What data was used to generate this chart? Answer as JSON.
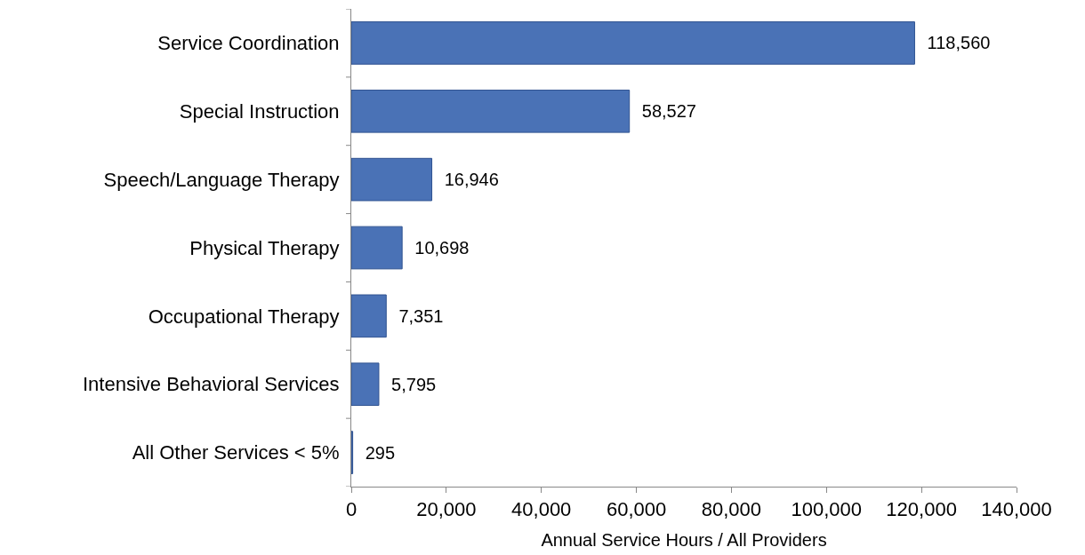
{
  "chart_data": {
    "type": "bar",
    "orientation": "horizontal",
    "categories": [
      "Service Coordination",
      "Special Instruction",
      "Speech/Language Therapy",
      "Physical Therapy",
      "Occupational Therapy",
      "Intensive Behavioral Services",
      "All Other Services < 5%"
    ],
    "values": [
      118560,
      58527,
      16946,
      10698,
      7351,
      5795,
      295
    ],
    "color": "#4a72b6",
    "xlabel": "Annual Service Hours / All Providers",
    "xlim": [
      0,
      140000
    ],
    "xticks": [
      {
        "value": 0,
        "label": "0"
      },
      {
        "value": 20000,
        "label": "20,000"
      },
      {
        "value": 40000,
        "label": "40,000"
      },
      {
        "value": 60000,
        "label": "60,000"
      },
      {
        "value": 80000,
        "label": "80,000"
      },
      {
        "value": 100000,
        "label": "100,000"
      },
      {
        "value": 120000,
        "label": "120,000"
      },
      {
        "value": 140000,
        "label": "140,000"
      }
    ],
    "value_labels": [
      "118,560",
      "58,527",
      "16,946",
      "10,698",
      "7,351",
      "5,795",
      "295"
    ],
    "legend": false
  }
}
